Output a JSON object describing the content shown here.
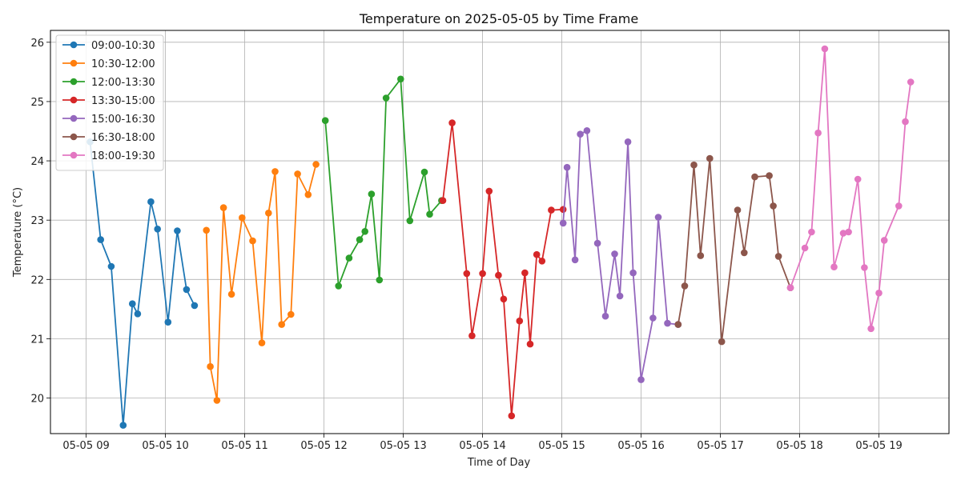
{
  "chart_data": {
    "type": "line",
    "title": "Temperature on 2025-05-05 by Time Frame",
    "xlabel": "Time of Day",
    "ylabel": "Temperature (°C)",
    "x_unit": "time",
    "xlim": [
      "08:33",
      "19:53"
    ],
    "ylim": [
      19.4,
      26.2
    ],
    "x_ticks": [
      {
        "value": "09:00",
        "label": "05-05 09"
      },
      {
        "value": "10:00",
        "label": "05-05 10"
      },
      {
        "value": "11:00",
        "label": "05-05 11"
      },
      {
        "value": "12:00",
        "label": "05-05 12"
      },
      {
        "value": "13:00",
        "label": "05-05 13"
      },
      {
        "value": "14:00",
        "label": "05-05 14"
      },
      {
        "value": "15:00",
        "label": "05-05 15"
      },
      {
        "value": "16:00",
        "label": "05-05 16"
      },
      {
        "value": "17:00",
        "label": "05-05 17"
      },
      {
        "value": "18:00",
        "label": "05-05 18"
      },
      {
        "value": "19:00",
        "label": "05-05 19"
      }
    ],
    "y_ticks": [
      20,
      21,
      22,
      23,
      24,
      25,
      26
    ],
    "grid": true,
    "legend_position": "top-left",
    "series": [
      {
        "name": "09:00-10:30",
        "color": "#1f77b4",
        "x": [
          "09:03",
          "09:11",
          "09:19",
          "09:28",
          "09:35",
          "09:39",
          "09:49",
          "09:54",
          "10:02",
          "10:09",
          "10:16",
          "10:22"
        ],
        "y": [
          24.32,
          22.67,
          22.22,
          19.54,
          21.59,
          21.42,
          23.31,
          22.85,
          21.28,
          22.82,
          21.83,
          21.56
        ]
      },
      {
        "name": "10:30-12:00",
        "color": "#ff7f0e",
        "x": [
          "10:31",
          "10:34",
          "10:39",
          "10:44",
          "10:50",
          "10:58",
          "11:06",
          "11:13",
          "11:18",
          "11:23",
          "11:28",
          "11:35",
          "11:40",
          "11:48",
          "11:54"
        ],
        "y": [
          22.83,
          20.53,
          19.96,
          23.21,
          21.75,
          23.04,
          22.65,
          20.93,
          23.12,
          23.82,
          21.24,
          21.41,
          23.78,
          23.43,
          23.94
        ]
      },
      {
        "name": "12:00-13:30",
        "color": "#2ca02c",
        "x": [
          "12:01",
          "12:11",
          "12:19",
          "12:27",
          "12:31",
          "12:36",
          "12:42",
          "12:47",
          "12:58",
          "13:05",
          "13:16",
          "13:20",
          "13:29"
        ],
        "y": [
          24.68,
          21.89,
          22.36,
          22.67,
          22.81,
          23.44,
          21.99,
          25.06,
          25.38,
          22.99,
          23.81,
          23.1,
          23.33
        ]
      },
      {
        "name": "13:30-15:00",
        "color": "#d62728",
        "x": [
          "13:30",
          "13:37",
          "13:48",
          "13:52",
          "14:00",
          "14:05",
          "14:12",
          "14:16",
          "14:22",
          "14:28",
          "14:32",
          "14:36",
          "14:41",
          "14:45",
          "14:52",
          "15:01"
        ],
        "y": [
          23.33,
          24.64,
          22.1,
          21.05,
          22.1,
          23.49,
          22.07,
          21.67,
          19.7,
          21.3,
          22.11,
          20.91,
          22.42,
          22.31,
          23.17,
          23.18
        ]
      },
      {
        "name": "15:00-16:30",
        "color": "#9467bd",
        "x": [
          "15:01",
          "15:04",
          "15:10",
          "15:14",
          "15:19",
          "15:27",
          "15:33",
          "15:40",
          "15:44",
          "15:50",
          "15:54",
          "16:00",
          "16:09",
          "16:13",
          "16:20",
          "16:28"
        ],
        "y": [
          22.95,
          23.89,
          22.33,
          24.45,
          24.51,
          22.61,
          21.38,
          22.43,
          21.72,
          24.32,
          22.11,
          20.31,
          21.35,
          23.05,
          21.26,
          21.24
        ]
      },
      {
        "name": "16:30-18:00",
        "color": "#8c564b",
        "x": [
          "16:28",
          "16:33",
          "16:40",
          "16:45",
          "16:52",
          "17:01",
          "17:13",
          "17:18",
          "17:26",
          "17:37",
          "17:40",
          "17:44",
          "17:53"
        ],
        "y": [
          21.24,
          21.89,
          23.93,
          22.4,
          24.04,
          20.95,
          23.17,
          22.45,
          23.73,
          23.75,
          23.24,
          22.39,
          21.86
        ]
      },
      {
        "name": "18:00-19:30",
        "color": "#e377c2",
        "x": [
          "17:53",
          "18:04",
          "18:09",
          "18:14",
          "18:19",
          "18:26",
          "18:33",
          "18:37",
          "18:44",
          "18:49",
          "18:54",
          "19:00",
          "19:04",
          "19:15",
          "19:20",
          "19:24"
        ],
        "y": [
          21.86,
          22.53,
          22.8,
          24.47,
          25.89,
          22.21,
          22.78,
          22.8,
          23.69,
          22.2,
          21.17,
          21.77,
          22.66,
          23.24,
          24.66,
          25.33
        ]
      }
    ]
  }
}
